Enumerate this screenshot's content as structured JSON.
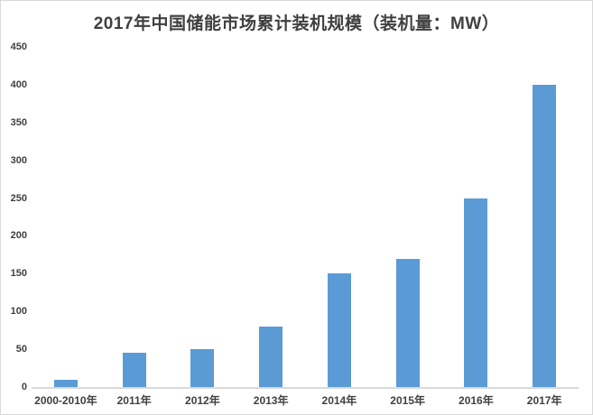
{
  "chart_data": {
    "type": "bar",
    "title": "2017年中国储能市场累计装机规模（装机量：MW）",
    "categories": [
      "2000-2010年",
      "2011年",
      "2012年",
      "2013年",
      "2014年",
      "2015年",
      "2016年",
      "2017年"
    ],
    "values": [
      10,
      45,
      50,
      80,
      150,
      170,
      250,
      400
    ],
    "xlabel": "",
    "ylabel": "",
    "unit": "MW",
    "ylim": [
      0,
      450
    ],
    "yticks": [
      0,
      50,
      100,
      150,
      200,
      250,
      300,
      350,
      400,
      450
    ],
    "grid": false,
    "legend": "none",
    "bar_color": "#5b9bd5",
    "axis_line_color": "#d9d9d9",
    "text_color": "#404040",
    "background_color": "#ffffff"
  }
}
